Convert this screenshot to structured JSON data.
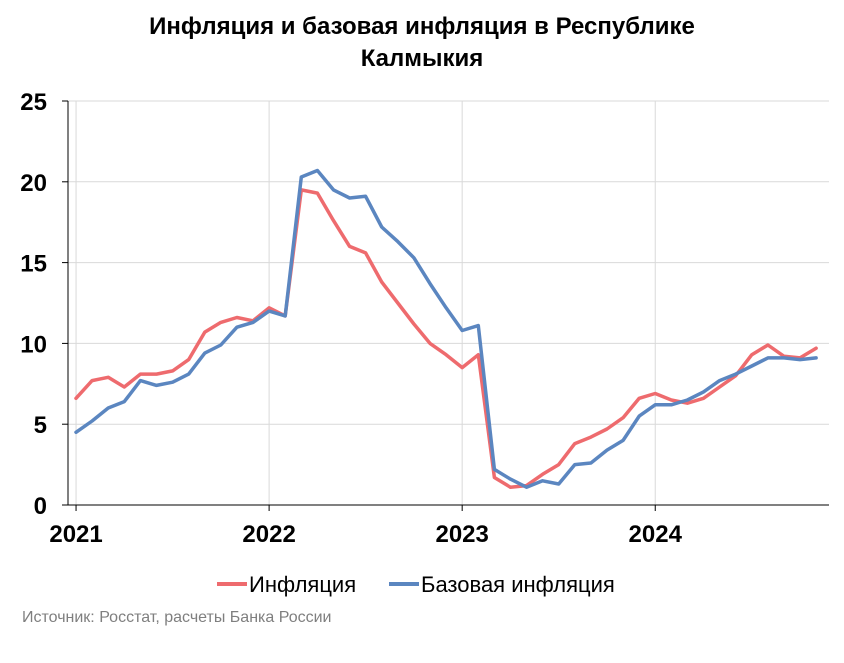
{
  "chart_data": {
    "type": "line",
    "title_line1": "Инфляция и базовая инфляция в Республике",
    "title_line2": "Калмыкия",
    "source": "Источник: Росстат, расчеты Банка России",
    "ylim": [
      0,
      25
    ],
    "yticks": [
      0,
      5,
      10,
      15,
      20,
      25
    ],
    "xticks": [
      {
        "label": "2021",
        "month": 0
      },
      {
        "label": "2022",
        "month": 12
      },
      {
        "label": "2023",
        "month": 24
      },
      {
        "label": "2024",
        "month": 36
      }
    ],
    "xlim_months": [
      -0.5,
      46.8
    ],
    "grid": true,
    "legend_position": "bottom",
    "series": [
      {
        "name": "Инфляция",
        "color": "#ee6b6e",
        "values": [
          6.6,
          7.7,
          7.9,
          7.3,
          8.1,
          8.1,
          8.3,
          9.0,
          10.7,
          11.3,
          11.6,
          11.4,
          12.2,
          11.7,
          19.5,
          19.3,
          17.6,
          16.0,
          15.6,
          13.8,
          12.5,
          11.2,
          10.0,
          9.3,
          8.5,
          9.3,
          1.7,
          1.1,
          1.2,
          1.9,
          2.5,
          3.8,
          4.2,
          4.7,
          5.4,
          6.6,
          6.9,
          6.5,
          6.3,
          6.6,
          7.3,
          8.0,
          9.3,
          9.9,
          9.2,
          9.1,
          9.7
        ]
      },
      {
        "name": "Базовая инфляция",
        "color": "#5b86c0",
        "values": [
          4.5,
          5.2,
          6.0,
          6.4,
          7.7,
          7.4,
          7.6,
          8.1,
          9.4,
          9.9,
          11.0,
          11.3,
          12.0,
          11.7,
          20.3,
          20.7,
          19.5,
          19.0,
          19.1,
          17.2,
          16.3,
          15.3,
          13.7,
          12.2,
          10.8,
          11.1,
          2.2,
          1.6,
          1.1,
          1.5,
          1.3,
          2.5,
          2.6,
          3.4,
          4.0,
          5.5,
          6.2,
          6.2,
          6.5,
          7.0,
          7.7,
          8.1,
          8.6,
          9.1,
          9.1,
          9.0,
          9.1
        ]
      }
    ]
  }
}
